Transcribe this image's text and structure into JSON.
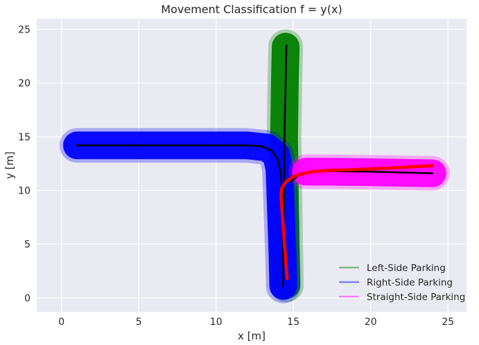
{
  "chart_data": {
    "type": "line",
    "title": "Movement Classification f = y(x)",
    "xlabel": "x [m]",
    "ylabel": "y [m]",
    "xlim": [
      -1.6,
      26.2
    ],
    "ylim": [
      -1.3,
      26.0
    ],
    "xticks": [
      0,
      5,
      10,
      15,
      20,
      25
    ],
    "yticks": [
      0,
      5,
      10,
      15,
      20,
      25
    ],
    "grid": true,
    "background": "#EAEAF2",
    "legend_position": "bottom-right",
    "legend": [
      {
        "label": "Left-Side Parking",
        "color": "#008000"
      },
      {
        "label": "Right-Side Parking",
        "color": "#0000FF"
      },
      {
        "label": "Straight-Side Parking",
        "color": "#FF00FF"
      }
    ],
    "series": [
      {
        "name": "Left-Side Parking",
        "color": "#008000",
        "style": "band",
        "x": [
          14.55,
          14.5,
          14.45,
          14.4,
          14.45,
          14.5
        ],
        "y": [
          1.2,
          5.0,
          10.0,
          15.0,
          20.0,
          23.4
        ]
      },
      {
        "name": "Right-Side Parking",
        "color": "#0000FF",
        "style": "band",
        "x": [
          1.0,
          5.0,
          10.0,
          12.0,
          13.3,
          13.9,
          14.1,
          14.2,
          14.3,
          14.35
        ],
        "y": [
          14.2,
          14.2,
          14.2,
          14.2,
          14.0,
          13.3,
          12.0,
          8.0,
          4.0,
          1.1
        ]
      },
      {
        "name": "Straight-Side Parking",
        "color": "#FF00FF",
        "style": "band",
        "x": [
          15.8,
          17.0,
          20.0,
          22.0,
          24.0
        ],
        "y": [
          11.75,
          11.75,
          11.7,
          11.65,
          11.6
        ]
      },
      {
        "name": "",
        "color": "#000000",
        "style": "line",
        "x": [
          14.55,
          14.5,
          14.45,
          14.42,
          14.42,
          14.4,
          14.38,
          14.36,
          14.35,
          14.34
        ],
        "y": [
          23.5,
          20.0,
          17.0,
          14.5,
          12.0,
          10.0,
          8.0,
          5.0,
          3.0,
          1.1
        ]
      },
      {
        "name": "",
        "color": "#000000",
        "style": "line",
        "x": [
          1.0,
          5.0,
          10.0,
          12.0,
          13.0,
          13.6,
          14.0,
          14.2,
          14.3,
          14.35
        ],
        "y": [
          14.2,
          14.2,
          14.2,
          14.2,
          14.1,
          13.7,
          12.9,
          11.5,
          8.0,
          3.0
        ]
      },
      {
        "name": "",
        "color": "#000000",
        "style": "line",
        "x": [
          14.8,
          15.5,
          17.0,
          20.0,
          24.0
        ],
        "y": [
          10.8,
          11.6,
          11.8,
          11.75,
          11.6
        ]
      },
      {
        "name": "",
        "color": "#FF0000",
        "style": "line",
        "x": [
          14.6,
          14.5,
          14.4,
          14.3,
          14.2,
          14.25,
          14.5,
          15.0,
          16.0,
          17.0,
          20.0,
          22.0,
          24.0
        ],
        "y": [
          1.8,
          3.5,
          5.5,
          7.5,
          9.5,
          10.2,
          10.8,
          11.3,
          11.7,
          11.85,
          12.0,
          12.15,
          12.3
        ]
      }
    ]
  }
}
